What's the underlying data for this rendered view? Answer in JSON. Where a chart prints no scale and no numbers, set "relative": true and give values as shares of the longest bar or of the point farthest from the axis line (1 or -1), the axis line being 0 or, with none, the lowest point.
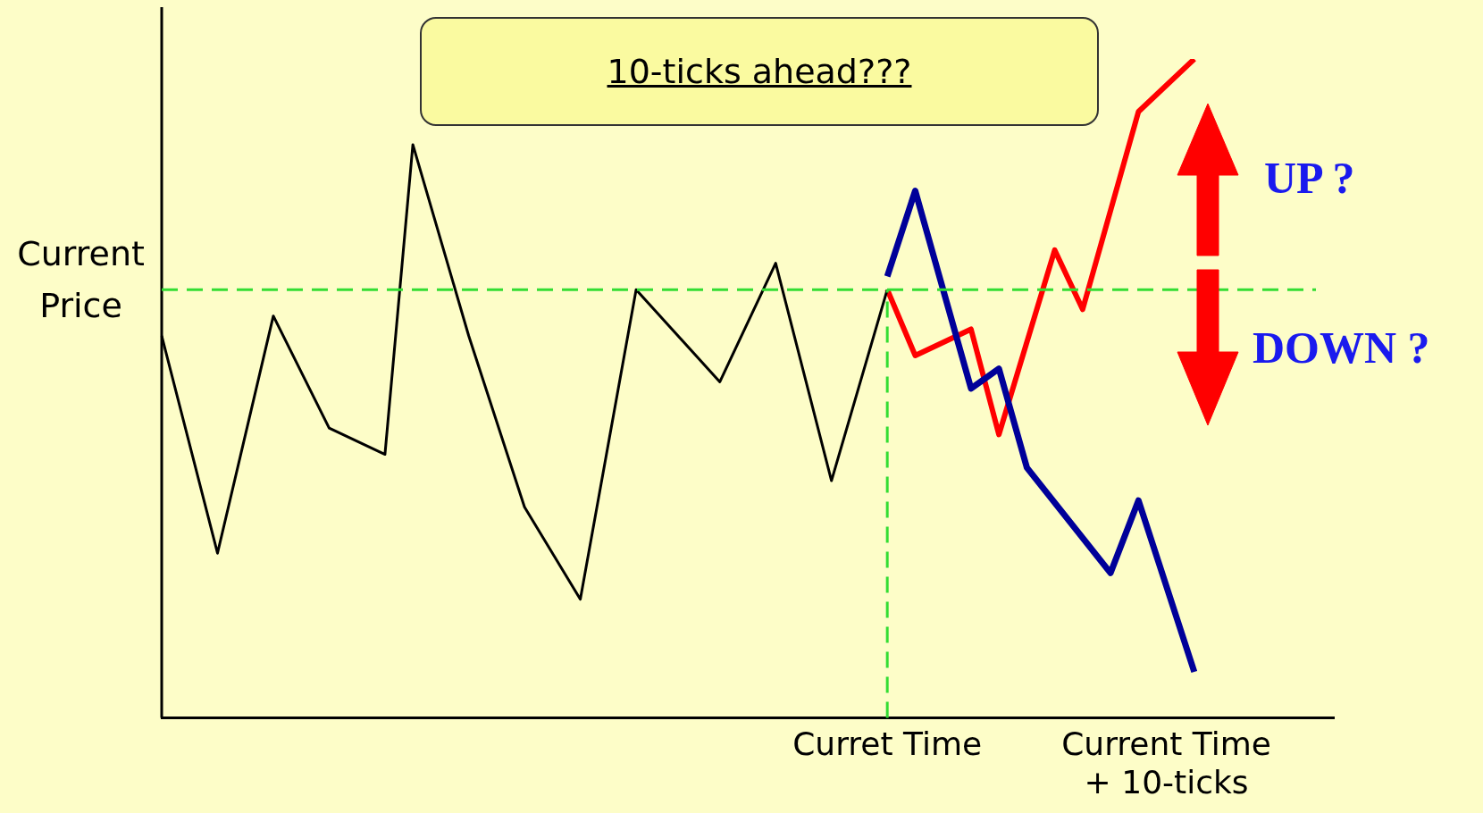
{
  "chart_data": {
    "type": "line",
    "relative": true,
    "annotations": [
      "10-ticks ahead???",
      "UP ?",
      "DOWN ?"
    ],
    "categories": [
      null,
      null,
      null,
      null,
      null,
      null,
      null,
      null,
      null,
      null,
      null,
      null,
      null,
      null,
      null,
      null,
      null,
      null,
      null,
      null,
      null,
      null,
      null,
      null,
      null,
      null,
      "Curret Time",
      null,
      null,
      null,
      null,
      null,
      null,
      null,
      null,
      null,
      "Current Time + 10-ticks",
      null,
      null,
      null,
      null,
      null,
      null
    ],
    "series": [
      {
        "color": "#000000",
        "values": [
          0.58,
          null,
          0.25,
          null,
          0.61,
          null,
          0.44,
          null,
          0.4,
          0.87,
          null,
          0.58,
          null,
          0.32,
          null,
          0.18,
          null,
          0.65,
          null,
          null,
          0.51,
          null,
          0.69,
          null,
          0.36,
          null,
          0.65,
          null,
          null,
          null,
          null,
          null,
          null,
          null,
          null,
          null,
          null,
          null,
          null,
          null,
          null,
          null,
          null
        ]
      },
      {
        "color": "#000099",
        "values": [
          null,
          null,
          null,
          null,
          null,
          null,
          null,
          null,
          null,
          null,
          null,
          null,
          null,
          null,
          null,
          null,
          null,
          null,
          null,
          null,
          null,
          null,
          null,
          null,
          null,
          null,
          0.67,
          0.8,
          null,
          0.5,
          0.53,
          0.38,
          null,
          null,
          0.22,
          0.33,
          null,
          0.07,
          null,
          null,
          null,
          null,
          null
        ]
      },
      {
        "color": "#ff0000",
        "values": [
          null,
          null,
          null,
          null,
          null,
          null,
          null,
          null,
          null,
          null,
          null,
          null,
          null,
          null,
          null,
          null,
          null,
          null,
          null,
          null,
          null,
          null,
          null,
          null,
          null,
          null,
          0.65,
          0.55,
          null,
          0.59,
          0.43,
          null,
          0.71,
          0.62,
          null,
          0.92,
          null,
          1,
          null,
          null,
          null,
          null,
          null
        ]
      }
    ],
    "ref_lines": [
      {
        "axis": "y",
        "value": 0.65,
        "label": "Current Price",
        "color": "#33dd33",
        "line_style": "dashed"
      },
      {
        "axis": "x",
        "value": "Curret Time",
        "color": "#33dd33",
        "line_style": "dashed"
      }
    ],
    "grid": false,
    "legend": false,
    "marker": "none"
  }
}
